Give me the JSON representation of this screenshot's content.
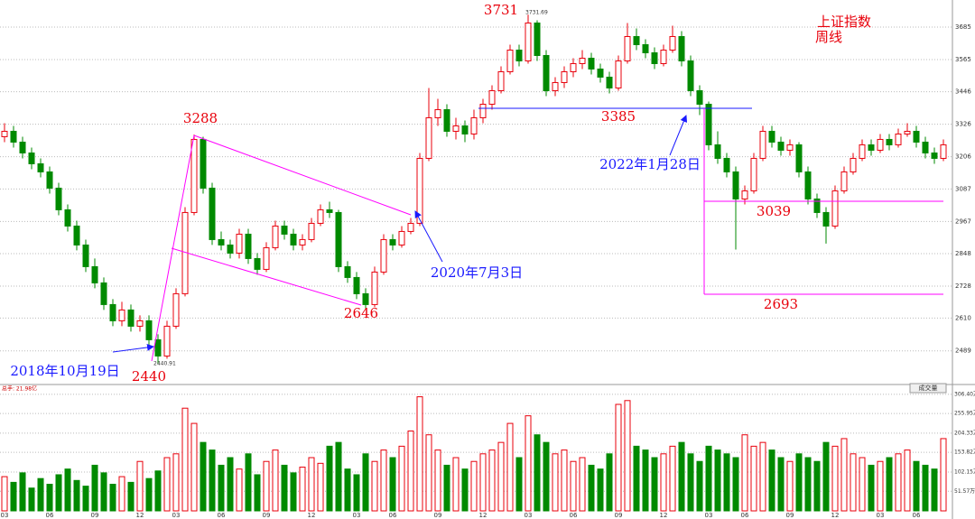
{
  "chart_data": {
    "type": "candlestick",
    "title": "上证指数",
    "subtitle": "周线",
    "up_color": "#e8000b",
    "down_color": "#008a00",
    "grid": true,
    "categories": [
      "03",
      null,
      null,
      null,
      null,
      "06",
      null,
      null,
      null,
      null,
      "09",
      null,
      null,
      null,
      null,
      "12",
      null,
      null,
      null,
      "03",
      null,
      null,
      null,
      null,
      "06",
      null,
      null,
      null,
      null,
      "09",
      null,
      null,
      null,
      null,
      "12",
      null,
      null,
      null,
      null,
      "03",
      null,
      null,
      null,
      "06",
      null,
      null,
      null,
      null,
      "09",
      null,
      null,
      null,
      null,
      "12",
      null,
      null,
      null,
      null,
      "03",
      null,
      null,
      null,
      null,
      "06",
      null,
      null,
      null,
      null,
      "09",
      null,
      null,
      null,
      null,
      "12",
      null,
      null,
      null,
      null,
      "03",
      null,
      null,
      null,
      "06",
      null,
      null,
      null,
      null,
      "09",
      null,
      null,
      null,
      null,
      "12",
      null,
      null,
      null,
      null,
      "03",
      null,
      null,
      null,
      "06",
      null,
      null,
      null
    ],
    "ohlc": [
      [
        3280,
        3330,
        3260,
        3300
      ],
      [
        3300,
        3320,
        3240,
        3260
      ],
      [
        3260,
        3280,
        3200,
        3220
      ],
      [
        3220,
        3240,
        3160,
        3180
      ],
      [
        3180,
        3200,
        3130,
        3150
      ],
      [
        3150,
        3170,
        3070,
        3090
      ],
      [
        3090,
        3110,
        2990,
        3010
      ],
      [
        3010,
        3030,
        2930,
        2950
      ],
      [
        2950,
        2970,
        2860,
        2880
      ],
      [
        2880,
        2900,
        2780,
        2800
      ],
      [
        2800,
        2830,
        2720,
        2740
      ],
      [
        2740,
        2760,
        2640,
        2660
      ],
      [
        2660,
        2680,
        2580,
        2600
      ],
      [
        2600,
        2670,
        2580,
        2640
      ],
      [
        2640,
        2660,
        2560,
        2580
      ],
      [
        2580,
        2620,
        2560,
        2600
      ],
      [
        2600,
        2620,
        2510,
        2530
      ],
      [
        2530,
        2550,
        2440,
        2470
      ],
      [
        2470,
        2600,
        2460,
        2580
      ],
      [
        2580,
        2720,
        2570,
        2700
      ],
      [
        2700,
        3020,
        2690,
        3000
      ],
      [
        3000,
        3288,
        2990,
        3270
      ],
      [
        3270,
        3280,
        3070,
        3090
      ],
      [
        3090,
        3110,
        2880,
        2900
      ],
      [
        2900,
        2930,
        2860,
        2880
      ],
      [
        2880,
        2900,
        2830,
        2850
      ],
      [
        2850,
        2940,
        2830,
        2920
      ],
      [
        2920,
        2940,
        2810,
        2830
      ],
      [
        2830,
        2850,
        2770,
        2790
      ],
      [
        2790,
        2890,
        2780,
        2870
      ],
      [
        2870,
        2970,
        2860,
        2950
      ],
      [
        2950,
        2970,
        2900,
        2920
      ],
      [
        2920,
        2940,
        2860,
        2880
      ],
      [
        2880,
        2920,
        2860,
        2900
      ],
      [
        2900,
        2980,
        2890,
        2960
      ],
      [
        2960,
        3030,
        2950,
        3010
      ],
      [
        3010,
        3040,
        2980,
        3000
      ],
      [
        3000,
        3010,
        2780,
        2800
      ],
      [
        2800,
        2820,
        2740,
        2760
      ],
      [
        2760,
        2780,
        2680,
        2700
      ],
      [
        2700,
        2720,
        2646,
        2660
      ],
      [
        2660,
        2800,
        2650,
        2780
      ],
      [
        2780,
        2920,
        2770,
        2900
      ],
      [
        2900,
        2920,
        2860,
        2880
      ],
      [
        2880,
        2950,
        2870,
        2930
      ],
      [
        2930,
        2980,
        2920,
        2960
      ],
      [
        2960,
        3220,
        2950,
        3200
      ],
      [
        3200,
        3460,
        3190,
        3350
      ],
      [
        3350,
        3420,
        3320,
        3380
      ],
      [
        3380,
        3400,
        3280,
        3300
      ],
      [
        3300,
        3350,
        3270,
        3320
      ],
      [
        3320,
        3340,
        3260,
        3290
      ],
      [
        3290,
        3380,
        3270,
        3350
      ],
      [
        3350,
        3420,
        3330,
        3400
      ],
      [
        3400,
        3470,
        3380,
        3450
      ],
      [
        3450,
        3540,
        3440,
        3520
      ],
      [
        3520,
        3620,
        3510,
        3600
      ],
      [
        3600,
        3620,
        3540,
        3560
      ],
      [
        3560,
        3731,
        3550,
        3700
      ],
      [
        3700,
        3710,
        3560,
        3580
      ],
      [
        3580,
        3600,
        3430,
        3450
      ],
      [
        3450,
        3500,
        3430,
        3480
      ],
      [
        3480,
        3540,
        3460,
        3520
      ],
      [
        3520,
        3570,
        3500,
        3550
      ],
      [
        3550,
        3600,
        3530,
        3570
      ],
      [
        3570,
        3590,
        3510,
        3530
      ],
      [
        3530,
        3550,
        3480,
        3500
      ],
      [
        3500,
        3520,
        3440,
        3460
      ],
      [
        3460,
        3580,
        3450,
        3560
      ],
      [
        3560,
        3700,
        3550,
        3650
      ],
      [
        3650,
        3680,
        3600,
        3620
      ],
      [
        3620,
        3640,
        3570,
        3590
      ],
      [
        3590,
        3610,
        3530,
        3550
      ],
      [
        3550,
        3620,
        3540,
        3600
      ],
      [
        3600,
        3690,
        3590,
        3650
      ],
      [
        3650,
        3670,
        3540,
        3560
      ],
      [
        3560,
        3580,
        3430,
        3450
      ],
      [
        3450,
        3470,
        3360,
        3400
      ],
      [
        3400,
        3410,
        3230,
        3250
      ],
      [
        3250,
        3300,
        3180,
        3200
      ],
      [
        3200,
        3220,
        3130,
        3150
      ],
      [
        3150,
        3170,
        2863,
        3050
      ],
      [
        3050,
        3100,
        3030,
        3080
      ],
      [
        3080,
        3220,
        3070,
        3200
      ],
      [
        3200,
        3320,
        3190,
        3300
      ],
      [
        3300,
        3320,
        3240,
        3260
      ],
      [
        3260,
        3280,
        3210,
        3230
      ],
      [
        3230,
        3270,
        3210,
        3250
      ],
      [
        3250,
        3260,
        3130,
        3150
      ],
      [
        3150,
        3170,
        3030,
        3050
      ],
      [
        3050,
        3070,
        2980,
        3000
      ],
      [
        3000,
        3020,
        2885,
        2950
      ],
      [
        2950,
        3100,
        2940,
        3080
      ],
      [
        3080,
        3170,
        3070,
        3150
      ],
      [
        3150,
        3220,
        3140,
        3200
      ],
      [
        3200,
        3270,
        3190,
        3250
      ],
      [
        3250,
        3270,
        3210,
        3230
      ],
      [
        3230,
        3290,
        3220,
        3270
      ],
      [
        3270,
        3290,
        3230,
        3250
      ],
      [
        3250,
        3310,
        3240,
        3290
      ],
      [
        3290,
        3330,
        3280,
        3300
      ],
      [
        3300,
        3320,
        3240,
        3260
      ],
      [
        3260,
        3280,
        3200,
        3220
      ],
      [
        3220,
        3240,
        3180,
        3200
      ],
      [
        3200,
        3270,
        3190,
        3250
      ]
    ],
    "ylim": [
      2368,
      3785
    ],
    "yticks": [
      2489,
      2610,
      2728,
      2848,
      2967,
      3087,
      3206,
      3326,
      3446,
      3565,
      3685
    ],
    "volume": {
      "label": "总手: 21.98亿",
      "button": "成交量",
      "ylim": [
        0,
        318
      ],
      "yticks": [
        {
          "value": 51.57,
          "label": "51.57万"
        },
        {
          "value": 102.15,
          "label": "102.15万"
        },
        {
          "value": 153.82,
          "label": "153.82万"
        },
        {
          "value": 204.33,
          "label": "204.33万"
        },
        {
          "value": 255.95,
          "label": "255.95万"
        },
        {
          "value": 306.4,
          "label": "306.40万"
        }
      ],
      "values": [
        90,
        75,
        100,
        60,
        85,
        70,
        95,
        110,
        80,
        65,
        120,
        100,
        70,
        90,
        75,
        130,
        85,
        105,
        140,
        150,
        270,
        230,
        180,
        160,
        120,
        140,
        110,
        150,
        95,
        130,
        160,
        120,
        100,
        115,
        140,
        125,
        170,
        180,
        110,
        95,
        150,
        130,
        160,
        140,
        170,
        210,
        300,
        200,
        160,
        120,
        140,
        110,
        130,
        150,
        160,
        180,
        230,
        140,
        250,
        200,
        180,
        150,
        160,
        130,
        140,
        120,
        110,
        150,
        280,
        290,
        170,
        160,
        140,
        150,
        170,
        180,
        150,
        130,
        170,
        160,
        150,
        140,
        200,
        170,
        180,
        160,
        140,
        130,
        150,
        140,
        130,
        180,
        170,
        190,
        150,
        140,
        120,
        130,
        140,
        150,
        160,
        130,
        120,
        110,
        190
      ]
    },
    "annotations": [
      "3731",
      "3731.69",
      "3288",
      "3385",
      "2022年1月28日",
      "2020年7月3日",
      "2646",
      "2440",
      "2440.91",
      "2018年10月19日",
      "3039",
      "2693"
    ]
  }
}
